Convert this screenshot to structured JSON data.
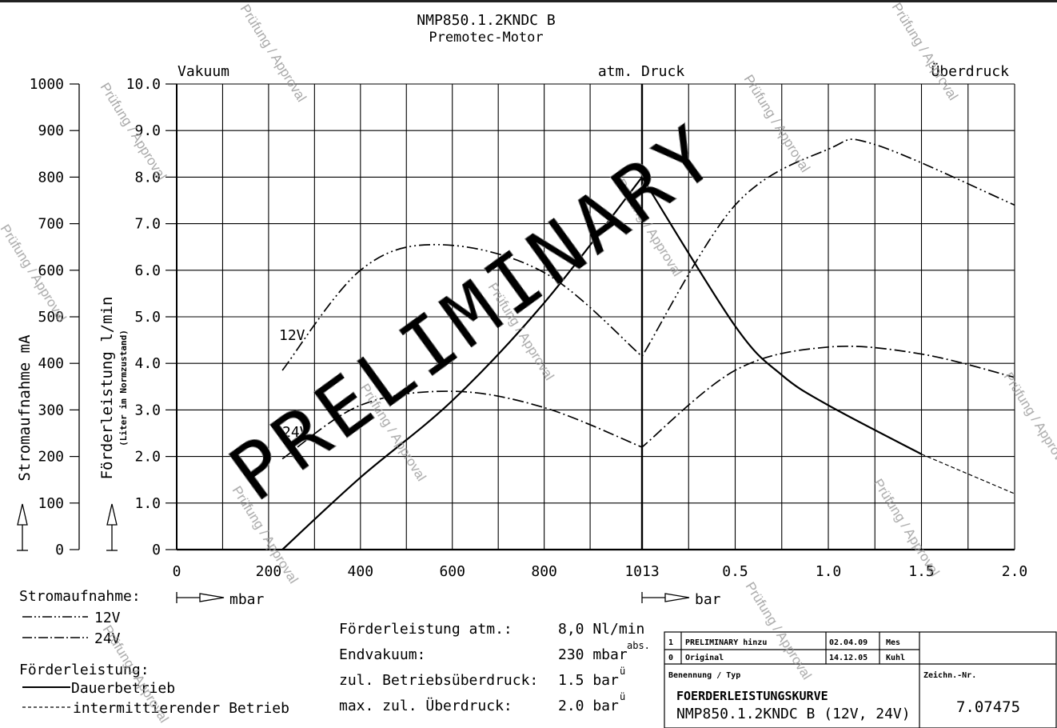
{
  "header": {
    "title": "NMP850.1.2KNDC B",
    "subtitle": "Premotec-Motor"
  },
  "regions": {
    "vacuum": "Vakuum",
    "atm": "atm. Druck",
    "over": "Überdruck"
  },
  "axes": {
    "left_label": "Stromaufnahme mA",
    "inner_label": "Förderleistung l/min",
    "inner_sublabel": "(Liter im Normzustand)",
    "mbar_unit": "mbar",
    "bar_unit": "bar"
  },
  "curve_labels": {
    "v12": "12V",
    "v24": "24V"
  },
  "watermark": {
    "text": "Prüfung / Approval",
    "stamp": "PRELIMINARY"
  },
  "legend": {
    "current_title": "Stromaufnahme:",
    "v12": "12V",
    "v24": "24V",
    "flow_title": "Förderleistung:",
    "continuous": "Dauerbetrieb",
    "intermittent": "intermittierender Betrieb"
  },
  "specs": [
    {
      "label": "Förderleistung atm.:",
      "value": "8,0 Nl/min",
      "sup": ""
    },
    {
      "label": "Endvakuum:",
      "value": "230 mbar",
      "sup": "abs."
    },
    {
      "label": "zul. Betriebsüberdruck:",
      "value": "1.5 bar",
      "sup": "ü"
    },
    {
      "label": "max. zul. Überdruck:",
      "value": "2.0 bar",
      "sup": "ü"
    }
  ],
  "title_block": {
    "rev_rows": [
      {
        "no": "1",
        "text": "PRELIMINARY hinzu",
        "date": "02.04.09",
        "by": "Mes"
      },
      {
        "no": "0",
        "text": "Original",
        "date": "14.12.05",
        "by": "Kuhl"
      }
    ],
    "name_label": "Benennung / Typ",
    "drawing_no_label": "Zeichn.-Nr.",
    "name_line1": "FOERDERLEISTUNGSKURVE",
    "name_line2": "NMP850.1.2KNDC B (12V, 24V)",
    "drawing_no": "7.07475"
  },
  "chart_data": {
    "type": "line",
    "x_axis": {
      "segments": [
        {
          "unit": "mbar",
          "range": [
            0,
            1013
          ],
          "ticks": [
            "0",
            "200",
            "400",
            "600",
            "800",
            "1013"
          ]
        },
        {
          "unit": "bar",
          "range": [
            0,
            2.0
          ],
          "ticks": [
            "0.5",
            "1.0",
            "1.5",
            "2.0"
          ]
        }
      ]
    },
    "y_left": {
      "label": "Stromaufnahme mA",
      "range": [
        0,
        1000
      ],
      "ticks": [
        "0",
        "100",
        "200",
        "300",
        "400",
        "500",
        "600",
        "700",
        "800",
        "900",
        "1000"
      ]
    },
    "y_right": {
      "label": "Förderleistung l/min",
      "range": [
        0,
        10
      ],
      "ticks": [
        "0",
        "1.0",
        "2.0",
        "3.0",
        "4.0",
        "5.0",
        "6.0",
        "7.0",
        "8.0",
        "9.0",
        "10.0"
      ]
    },
    "grid": true,
    "series": [
      {
        "name": "Dauerbetrieb",
        "axis": "flow",
        "style": "solid",
        "x": [
          "230 mbar",
          "400 mbar",
          "600 mbar",
          "800 mbar",
          "1013 mbar",
          "0.5 bar",
          "0.75 bar",
          "1.0 bar",
          "1.5 bar"
        ],
        "values": [
          0,
          1.55,
          3.2,
          5.3,
          8.0,
          4.8,
          3.75,
          3.1,
          2.05
        ]
      },
      {
        "name": "intermittierender Betrieb",
        "axis": "flow",
        "style": "dashed",
        "x": [
          "1.5 bar",
          "2.0 bar"
        ],
        "values": [
          2.05,
          1.2
        ]
      },
      {
        "name": "12V",
        "axis": "current",
        "style": "dash-dot-dot",
        "x": [
          "230 mbar",
          "400 mbar",
          "570 mbar",
          "800 mbar",
          "1013 mbar",
          "0.5 bar",
          "1.0 bar",
          "1.25 bar",
          "2.0 bar"
        ],
        "values": [
          385,
          600,
          655,
          595,
          415,
          740,
          860,
          870,
          740
        ]
      },
      {
        "name": "24V",
        "axis": "current",
        "style": "dash-dot",
        "x": [
          "230 mbar",
          "400 mbar",
          "600 mbar",
          "800 mbar",
          "1013 mbar",
          "0.5 bar",
          "1.0 bar",
          "1.5 bar",
          "2.0 bar"
        ],
        "values": [
          195,
          310,
          340,
          305,
          220,
          385,
          435,
          420,
          370
        ]
      }
    ]
  }
}
